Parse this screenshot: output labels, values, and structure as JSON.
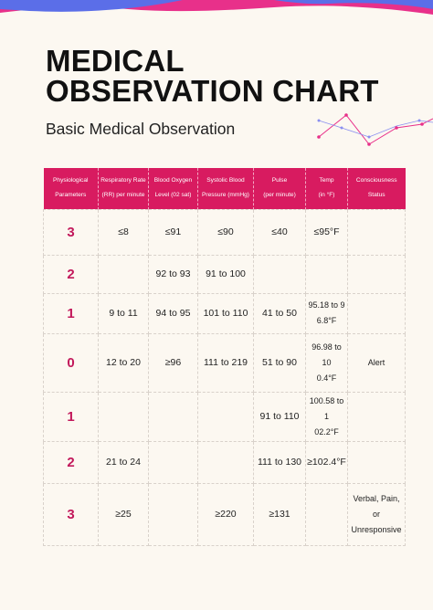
{
  "colors": {
    "accent": "#d81b60",
    "background": "#fcf8f1",
    "band_blue": "#5b6ee8",
    "band_pink": "#e8308a"
  },
  "title_line1": "MEDICAL",
  "title_line2": "OBSERVATION CHART",
  "subtitle": "Basic Medical Observation",
  "table": {
    "headers": [
      [
        "Physiological",
        "Parameters"
      ],
      [
        "Respiratory Rate",
        "(RR) per minute"
      ],
      [
        "Blood Oxygen",
        "Level (02 sat)"
      ],
      [
        "Systolic Blood",
        "Pressure (mmHg)"
      ],
      [
        "Pulse",
        "(per minute)"
      ],
      [
        "Temp",
        "(in °F)"
      ],
      [
        "Consciousness",
        "Status"
      ]
    ],
    "rows": [
      [
        "3",
        "≤8",
        "≤91",
        "≤90",
        "≤40",
        "≤95°F",
        ""
      ],
      [
        "2",
        "",
        "92 to 93",
        "91 to 100",
        "",
        "",
        ""
      ],
      [
        "1",
        "9 to 11",
        "94 to 95",
        "101 to 110",
        "41 to 50",
        "95.18 to 9\n6.8°F",
        ""
      ],
      [
        "0",
        "12 to 20",
        "≥96",
        "111 to 219",
        "51 to 90",
        "96.98 to 10\n0.4°F",
        "Alert"
      ],
      [
        "1",
        "",
        "",
        "",
        "91 to 110",
        "100.58 to 1\n02.2°F",
        ""
      ],
      [
        "2",
        "21 to 24",
        "",
        "",
        "111 to 130",
        "≥102.4°F",
        ""
      ],
      [
        "3",
        "≥25",
        "",
        "≥220",
        "≥131",
        "",
        "Verbal, Pain, or\nUnresponsive"
      ]
    ]
  }
}
